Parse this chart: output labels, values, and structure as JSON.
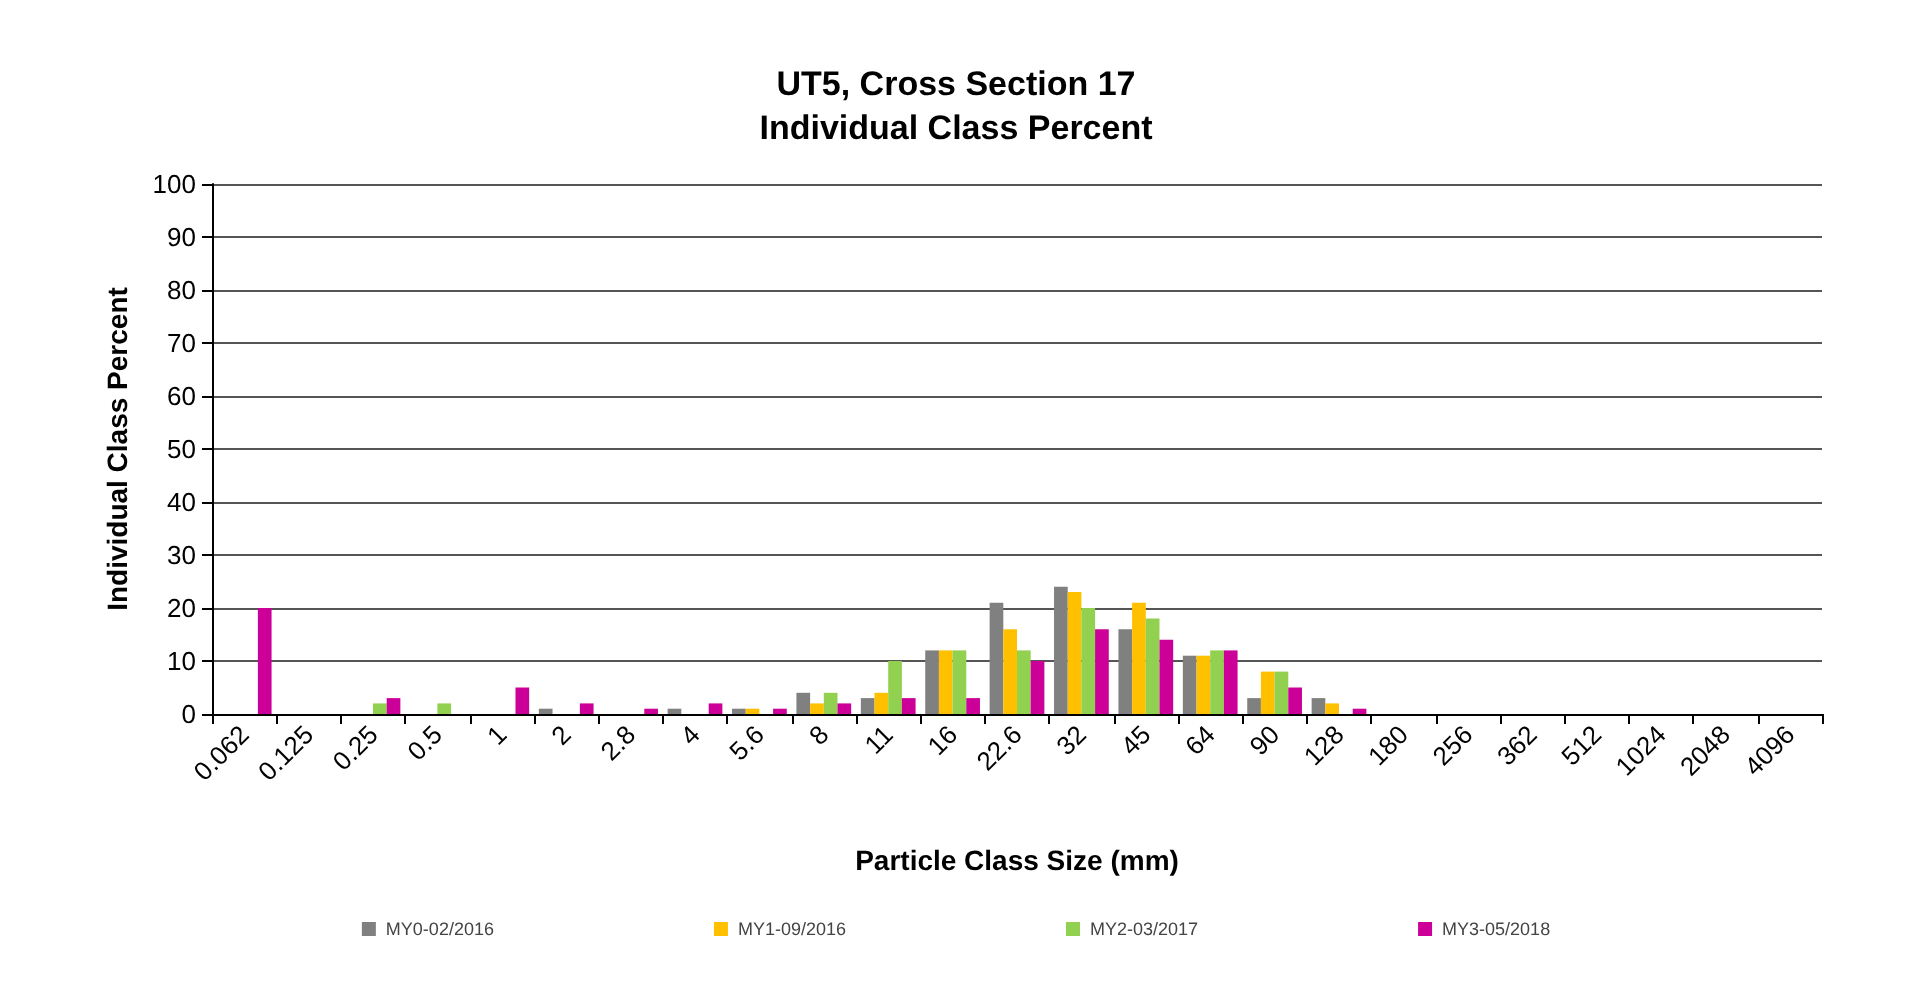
{
  "chart_data": {
    "type": "bar",
    "title": "UT5, Cross Section 17\nIndividual Class Percent",
    "xlabel": "Particle Class Size (mm)",
    "ylabel": "Individual Class Percent",
    "categories": [
      "0.062",
      "0.125",
      "0.25",
      "0.5",
      "1",
      "2",
      "2.8",
      "4",
      "5.6",
      "8",
      "11",
      "16",
      "22.6",
      "32",
      "45",
      "64",
      "90",
      "128",
      "180",
      "256",
      "362",
      "512",
      "1024",
      "2048",
      "4096"
    ],
    "series": [
      {
        "name": "MY0-02/2016",
        "color": "#808080",
        "values": [
          0,
          0,
          0,
          0,
          0,
          1,
          0,
          1,
          1,
          4,
          3,
          12,
          21,
          24,
          16,
          11,
          3,
          3,
          0,
          0,
          0,
          0,
          0,
          0,
          0
        ]
      },
      {
        "name": "MY1-09/2016",
        "color": "#ffc000",
        "values": [
          0,
          0,
          0,
          0,
          0,
          0,
          0,
          0,
          1,
          2,
          4,
          12,
          16,
          23,
          21,
          11,
          8,
          2,
          0,
          0,
          0,
          0,
          0,
          0,
          0
        ]
      },
      {
        "name": "MY2-03/2017",
        "color": "#92d050",
        "values": [
          0,
          0,
          2,
          2,
          0,
          0,
          0,
          0,
          0,
          4,
          10,
          12,
          12,
          20,
          18,
          12,
          8,
          0,
          0,
          0,
          0,
          0,
          0,
          0,
          0
        ]
      },
      {
        "name": "MY3-05/2018",
        "color": "#cc0099",
        "values": [
          20,
          0,
          3,
          0,
          5,
          2,
          1,
          2,
          1,
          2,
          3,
          3,
          10,
          16,
          14,
          12,
          5,
          1,
          0,
          0,
          0,
          0,
          0,
          0,
          0
        ]
      }
    ],
    "ylim": [
      0,
      100
    ],
    "yticks": [
      0,
      10,
      20,
      30,
      40,
      50,
      60,
      70,
      80,
      90,
      100
    ],
    "grid": "y",
    "legend": "bottom"
  }
}
